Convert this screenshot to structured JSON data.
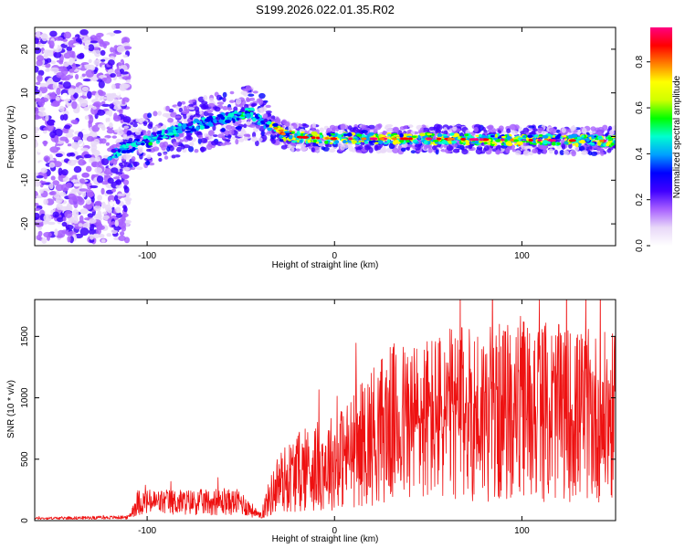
{
  "figure": {
    "title": "S199.2026.022.01.35.R02"
  },
  "chart_data": [
    {
      "type": "heatmap",
      "name": "spectrogram",
      "xlabel": "Height of straight line (km)",
      "ylabel": "Frequency (Hz)",
      "xlim": [
        -160,
        150
      ],
      "ylim": [
        -25,
        25
      ],
      "xticks": [
        -100,
        0,
        100
      ],
      "xtick_labels": [
        "-100",
        "0",
        "100"
      ],
      "yticks": [
        -20,
        -10,
        0,
        10,
        20
      ],
      "ytick_labels": [
        "-20",
        "-10",
        "0",
        "10",
        "20"
      ],
      "ridge_frequency_hz": {
        "x": [
          -120,
          -100,
          -80,
          -60,
          -45,
          -35,
          -25,
          0,
          50,
          100,
          150
        ],
        "y": [
          -4,
          -1,
          2,
          4,
          5.5,
          2.5,
          0,
          -0.5,
          -0.5,
          -0.8,
          -1
        ]
      },
      "colorbar": {
        "label": "Normalized spectral amplitude",
        "range": [
          0,
          0.95
        ],
        "ticks": [
          0.0,
          0.2,
          0.4,
          0.6,
          0.8
        ],
        "tick_labels": [
          "0.0",
          "0.2",
          "0.4",
          "0.6",
          "0.8"
        ],
        "colors": [
          "#ffffff",
          "#e8d8f8",
          "#a860ff",
          "#4000ff",
          "#0000ff",
          "#00a0ff",
          "#00ffd0",
          "#00ff00",
          "#d0ff00",
          "#ffff00",
          "#ff8000",
          "#ff0000",
          "#ff0080"
        ]
      }
    },
    {
      "type": "line",
      "name": "snr",
      "xlabel": "Height of straight line (km)",
      "ylabel": "SNR (10 * v/v)",
      "xlim": [
        -160,
        150
      ],
      "ylim": [
        0,
        1800
      ],
      "xticks": [
        -100,
        0,
        100
      ],
      "xtick_labels": [
        "-100",
        "0",
        "100"
      ],
      "yticks": [
        0,
        500,
        1000,
        1500
      ],
      "ytick_labels": [
        "0",
        "500",
        "1000",
        "1500"
      ],
      "color": "#ee1111",
      "envelope": {
        "x": [
          -160,
          -110,
          -105,
          -50,
          -40,
          -35,
          -30,
          -20,
          -10,
          0,
          10,
          20,
          30,
          50,
          70,
          90,
          100,
          120,
          150
        ],
        "y": [
          20,
          30,
          150,
          150,
          40,
          200,
          350,
          450,
          500,
          550,
          650,
          800,
          900,
          950,
          1000,
          1000,
          1050,
          1000,
          950
        ]
      }
    }
  ]
}
